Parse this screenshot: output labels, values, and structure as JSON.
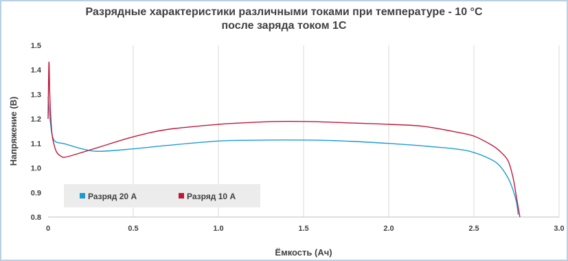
{
  "chart_data": {
    "type": "line",
    "title_line1": "Разрядные характеристики различными токами при температуре - 10 °C",
    "title_line2": "после заряда током 1С",
    "xlabel": "Ёмкость (Ач)",
    "ylabel": "Напряжение (В)",
    "xlim": [
      0,
      3.0
    ],
    "ylim": [
      0.8,
      1.5
    ],
    "x_ticks": [
      "0",
      "0.5",
      "1.0",
      "1.5",
      "2.0",
      "2.5",
      "3.0"
    ],
    "y_ticks": [
      "0.8",
      "0.9",
      "1.0",
      "1.1",
      "1.2",
      "1.3",
      "1.4",
      "1.5"
    ],
    "grid": "vertical",
    "legend_position": "bottom-left",
    "series": [
      {
        "name": "Разряд 20 А",
        "color": "#1b9ad6",
        "points": [
          [
            0.0,
            1.29
          ],
          [
            0.01,
            1.21
          ],
          [
            0.02,
            1.15
          ],
          [
            0.03,
            1.12
          ],
          [
            0.05,
            1.105
          ],
          [
            0.1,
            1.098
          ],
          [
            0.2,
            1.078
          ],
          [
            0.3,
            1.068
          ],
          [
            0.5,
            1.078
          ],
          [
            0.7,
            1.092
          ],
          [
            1.0,
            1.11
          ],
          [
            1.2,
            1.113
          ],
          [
            1.4,
            1.114
          ],
          [
            1.6,
            1.113
          ],
          [
            1.8,
            1.108
          ],
          [
            2.0,
            1.1
          ],
          [
            2.2,
            1.09
          ],
          [
            2.4,
            1.077
          ],
          [
            2.5,
            1.063
          ],
          [
            2.6,
            1.035
          ],
          [
            2.65,
            1.01
          ],
          [
            2.7,
            0.96
          ],
          [
            2.73,
            0.91
          ],
          [
            2.75,
            0.86
          ],
          [
            2.76,
            0.81
          ]
        ]
      },
      {
        "name": "Разряд 10 А",
        "color": "#c0163a",
        "points": [
          [
            0.0,
            1.2
          ],
          [
            0.005,
            1.43
          ],
          [
            0.01,
            1.3
          ],
          [
            0.02,
            1.16
          ],
          [
            0.03,
            1.11
          ],
          [
            0.05,
            1.065
          ],
          [
            0.08,
            1.046
          ],
          [
            0.1,
            1.044
          ],
          [
            0.15,
            1.053
          ],
          [
            0.3,
            1.085
          ],
          [
            0.5,
            1.127
          ],
          [
            0.7,
            1.157
          ],
          [
            1.0,
            1.178
          ],
          [
            1.2,
            1.186
          ],
          [
            1.4,
            1.19
          ],
          [
            1.6,
            1.188
          ],
          [
            1.8,
            1.183
          ],
          [
            2.0,
            1.178
          ],
          [
            2.2,
            1.17
          ],
          [
            2.4,
            1.146
          ],
          [
            2.5,
            1.13
          ],
          [
            2.6,
            1.095
          ],
          [
            2.65,
            1.07
          ],
          [
            2.7,
            1.03
          ],
          [
            2.73,
            0.96
          ],
          [
            2.75,
            0.88
          ],
          [
            2.77,
            0.8
          ]
        ]
      }
    ]
  }
}
